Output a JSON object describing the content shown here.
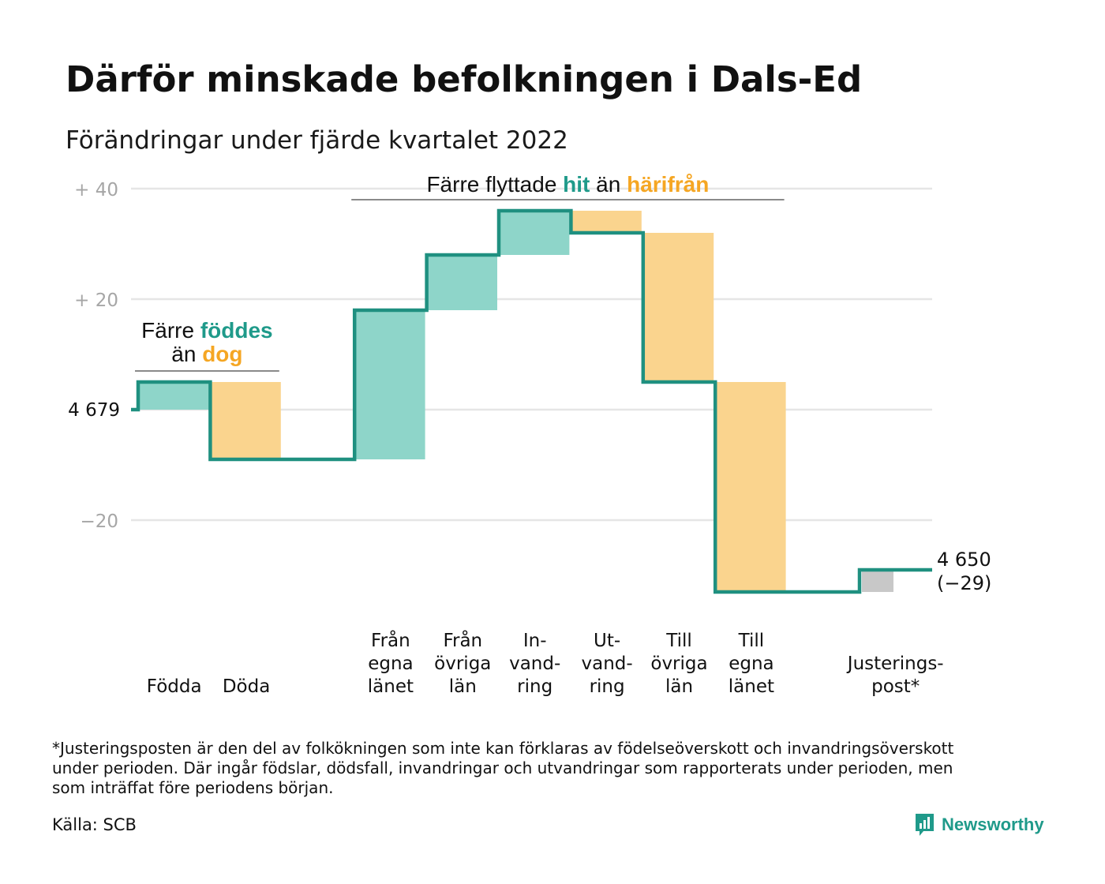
{
  "header": {
    "title": "Därför minskade befolkningen i Dals-Ed",
    "subtitle": "Förändringar under fjärde kvartalet 2022"
  },
  "footer": {
    "footnote_lines": [
      "*Justeringsposten är den del av folkökningen som inte kan förklaras av födelseöverskott och invandringsöverskott",
      "under perioden. Där ingår födslar, dödsfall, invandringar och utvandringar som rapporterats under perioden, men",
      "som inträffat före periodens början."
    ],
    "source": "Källa: SCB",
    "brand": "Newsworthy",
    "brand_icon": "newsworthy-logo-icon"
  },
  "colors": {
    "increase": "#8ed5c9",
    "decrease": "#fad48e",
    "adjustment": "#c8c8c8",
    "line": "#1f9080",
    "grid": "#e6e6e6",
    "tick_text": "#a6a6a6",
    "teal_text": "#1f9a8a",
    "orange_text": "#f5a623"
  },
  "chart_data": {
    "type": "waterfall",
    "start_value": 4679,
    "start_label": "4 679",
    "end_label_lines": [
      "4 650",
      "(−29)"
    ],
    "y_axis": {
      "ylim": [
        -32,
        41
      ],
      "ticks": [
        {
          "value": 40,
          "label": "+ 40"
        },
        {
          "value": 20,
          "label": "+ 20"
        },
        {
          "value": 0,
          "label": ""
        },
        {
          "value": -20,
          "label": "−20"
        }
      ],
      "grid": true
    },
    "steps": [
      {
        "label_lines": [
          "Födda"
        ],
        "change": 5,
        "kind": "increase"
      },
      {
        "label_lines": [
          "Döda"
        ],
        "change": -14,
        "kind": "decrease"
      },
      {
        "label_lines": [],
        "change": 0,
        "kind": "gap"
      },
      {
        "label_lines": [
          "Från",
          "egna",
          "länet"
        ],
        "change": 27,
        "kind": "increase"
      },
      {
        "label_lines": [
          "Från",
          "övriga",
          "län"
        ],
        "change": 10,
        "kind": "increase"
      },
      {
        "label_lines": [
          "In-",
          "vand-",
          "ring"
        ],
        "change": 8,
        "kind": "increase"
      },
      {
        "label_lines": [
          "Ut-",
          "vand-",
          "ring"
        ],
        "change": -4,
        "kind": "decrease"
      },
      {
        "label_lines": [
          "Till",
          "övriga",
          "län"
        ],
        "change": -27,
        "kind": "decrease"
      },
      {
        "label_lines": [
          "Till",
          "egna",
          "länet"
        ],
        "change": -38,
        "kind": "decrease"
      },
      {
        "label_lines": [],
        "change": 0,
        "kind": "gap"
      },
      {
        "label_lines": [
          "Justerings-",
          "post*"
        ],
        "change": 4,
        "kind": "adjustment"
      }
    ],
    "annotations": [
      {
        "id": "births-deaths",
        "from_step": 0,
        "to_step": 1,
        "parts": [
          [
            {
              "text": "Färre ",
              "style": "plain"
            },
            {
              "text": "föddes",
              "style": "teal"
            }
          ],
          [
            {
              "text": "än ",
              "style": "plain"
            },
            {
              "text": "dog",
              "style": "orange"
            }
          ]
        ]
      },
      {
        "id": "migration",
        "from_step": 3,
        "to_step": 8,
        "parts": [
          [
            {
              "text": "Färre flyttade ",
              "style": "plain"
            },
            {
              "text": "hit",
              "style": "teal"
            },
            {
              "text": " än ",
              "style": "plain"
            },
            {
              "text": "härifrån",
              "style": "orange"
            }
          ]
        ]
      }
    ]
  }
}
